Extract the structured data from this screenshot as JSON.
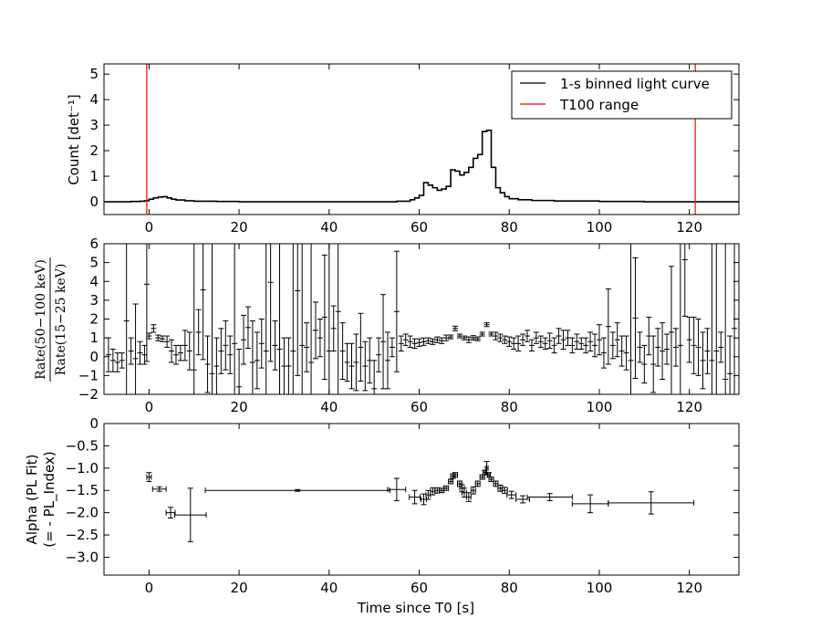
{
  "chart_data": [
    {
      "type": "line",
      "panel": "light-curve",
      "ylabel": "Count [det⁻¹]",
      "xlim": [
        -10,
        131
      ],
      "ylim": [
        -0.5,
        5.4
      ],
      "xticks": [
        0,
        20,
        40,
        60,
        80,
        100,
        120
      ],
      "yticks": [
        0,
        1,
        2,
        3,
        4,
        5
      ],
      "legend": {
        "placement": "top-right",
        "entries": [
          {
            "label": "1-s binned light curve",
            "color": "#000000"
          },
          {
            "label": "T100 range",
            "color": "#ff0000"
          }
        ]
      },
      "t100_lines": [
        -0.5,
        121.3
      ],
      "series": [
        {
          "name": "1-s binned light curve",
          "x": [
            -10,
            -8,
            -6,
            -4,
            -2,
            -1,
            0,
            1,
            2,
            3,
            4,
            5,
            6,
            8,
            10,
            15,
            20,
            30,
            40,
            50,
            55,
            58,
            59,
            60,
            61,
            62,
            63,
            64,
            65,
            66,
            67,
            68,
            69,
            70,
            71,
            72,
            73,
            74,
            75,
            76,
            77,
            78,
            79,
            80,
            82,
            85,
            90,
            100,
            110,
            120,
            131
          ],
          "y": [
            0,
            0,
            0,
            0.01,
            0.02,
            0.04,
            0.1,
            0.15,
            0.18,
            0.2,
            0.15,
            0.1,
            0.07,
            0.04,
            0.02,
            0.01,
            0,
            0,
            0,
            0,
            0.02,
            0.08,
            0.15,
            0.25,
            0.75,
            0.65,
            0.55,
            0.45,
            0.5,
            0.6,
            1.25,
            1.2,
            1.05,
            1.15,
            1.35,
            1.7,
            1.85,
            2.75,
            2.8,
            1.35,
            0.55,
            0.35,
            0.2,
            0.12,
            0.08,
            0.05,
            0.03,
            0.01,
            0,
            0,
            0
          ]
        }
      ]
    },
    {
      "type": "scatter",
      "panel": "hardness-ratio",
      "ylabel": "Rate(50−100 keV) / Rate(15−25 keV)",
      "xlim": [
        -10,
        131
      ],
      "ylim": [
        -2,
        6
      ],
      "xticks": [
        0,
        20,
        40,
        60,
        80,
        100,
        120
      ],
      "yticks": [
        -2,
        -1,
        0,
        1,
        2,
        3,
        4,
        5,
        6
      ],
      "points": [
        {
          "x": -9,
          "y": 0.1,
          "err": 0.9
        },
        {
          "x": -8,
          "y": -0.2,
          "err": 0.6
        },
        {
          "x": -7,
          "y": -0.3,
          "err": 0.5
        },
        {
          "x": -6,
          "y": -0.2,
          "err": 0.4
        },
        {
          "x": -5,
          "y": 1.9,
          "err": 8
        },
        {
          "x": -4,
          "y": 0.3,
          "err": 0.7
        },
        {
          "x": -3,
          "y": -0.1,
          "err": 2.9
        },
        {
          "x": -2,
          "y": 0.2,
          "err": 0.6
        },
        {
          "x": -1,
          "y": 0.1,
          "err": 0.5
        },
        {
          "x": -0.5,
          "y": 3.85,
          "err": 4.1
        },
        {
          "x": 0,
          "y": 1.1,
          "err": 0.15
        },
        {
          "x": 1,
          "y": 1.5,
          "err": 0.2
        },
        {
          "x": 2,
          "y": 1,
          "err": 0.15
        },
        {
          "x": 3,
          "y": 0.95,
          "err": 0.15
        },
        {
          "x": 4,
          "y": 0.8,
          "err": 0.3
        },
        {
          "x": 5,
          "y": 0.3,
          "err": 0.6
        },
        {
          "x": 6,
          "y": 0.1,
          "err": 0.5
        },
        {
          "x": 7,
          "y": 0.2,
          "err": 0.4
        },
        {
          "x": 8,
          "y": 0.6,
          "err": 0.8
        },
        {
          "x": 9,
          "y": 0.3,
          "err": 1
        },
        {
          "x": 10,
          "y": -0.7,
          "err": 8
        },
        {
          "x": 11,
          "y": 1.3,
          "err": 1.2
        },
        {
          "x": 12,
          "y": 3.55,
          "err": 3.7
        },
        {
          "x": 13,
          "y": -0.4,
          "err": 1.5
        },
        {
          "x": 14,
          "y": -0.9,
          "err": 8
        },
        {
          "x": 15,
          "y": -0.5,
          "err": 1.5
        },
        {
          "x": 16,
          "y": 0.3,
          "err": 1.2
        },
        {
          "x": 17,
          "y": 0.6,
          "err": 1.3
        },
        {
          "x": 18,
          "y": 0.1,
          "err": 1
        },
        {
          "x": 19,
          "y": 0.7,
          "err": 8
        },
        {
          "x": 20,
          "y": -1.6,
          "err": 2
        },
        {
          "x": 21,
          "y": 0.9,
          "err": 1.3
        },
        {
          "x": 22,
          "y": 1.55,
          "err": 1.1
        },
        {
          "x": 23,
          "y": -0.3,
          "err": 2.2
        },
        {
          "x": 24,
          "y": -0.2,
          "err": 1.5
        },
        {
          "x": 25,
          "y": 0.7,
          "err": 1.3
        },
        {
          "x": 26,
          "y": 0.3,
          "err": 8
        },
        {
          "x": 27,
          "y": 3.95,
          "err": 4.2
        },
        {
          "x": 28,
          "y": 0.6,
          "err": 1.3
        },
        {
          "x": 29,
          "y": 0.4,
          "err": 8
        },
        {
          "x": 30,
          "y": -0.5,
          "err": 1.5
        },
        {
          "x": 31,
          "y": -0.5,
          "err": 1.5
        },
        {
          "x": 32,
          "y": 0.3,
          "err": 8
        },
        {
          "x": 33,
          "y": 3.5,
          "err": 4.5
        },
        {
          "x": 34,
          "y": 0.6,
          "err": 8
        },
        {
          "x": 35,
          "y": 0.5,
          "err": 1.3
        },
        {
          "x": 36,
          "y": -0.3,
          "err": 8
        },
        {
          "x": 37,
          "y": 1.4,
          "err": 1.5
        },
        {
          "x": 38,
          "y": 1,
          "err": 1
        },
        {
          "x": 39,
          "y": 2.1,
          "err": 3.3
        },
        {
          "x": 40,
          "y": 0.3,
          "err": 8
        },
        {
          "x": 41,
          "y": 1.5,
          "err": 1.2
        },
        {
          "x": 42,
          "y": 2.4,
          "err": 8
        },
        {
          "x": 43,
          "y": 0.3,
          "err": 1.5
        },
        {
          "x": 44,
          "y": -0.3,
          "err": 1
        },
        {
          "x": 45,
          "y": -0.5,
          "err": 1.2
        },
        {
          "x": 46,
          "y": -0.3,
          "err": 1.5
        },
        {
          "x": 47,
          "y": 0.5,
          "err": 1.8
        },
        {
          "x": 48,
          "y": -0.5,
          "err": 1.3
        },
        {
          "x": 49,
          "y": -0.2,
          "err": 1.2
        },
        {
          "x": 50,
          "y": -1.7,
          "err": 1.5
        },
        {
          "x": 51,
          "y": 0.1,
          "err": 0.9
        },
        {
          "x": 52,
          "y": 0.8,
          "err": 2.5
        },
        {
          "x": 53,
          "y": -0.2,
          "err": 1.5
        },
        {
          "x": 54,
          "y": 0.5,
          "err": 0.5
        },
        {
          "x": 55,
          "y": 2.4,
          "err": 3.2
        },
        {
          "x": 56,
          "y": 0.7,
          "err": 0.4
        },
        {
          "x": 57,
          "y": 0.9,
          "err": 0.3
        },
        {
          "x": 58,
          "y": 0.8,
          "err": 0.3
        },
        {
          "x": 59,
          "y": 0.7,
          "err": 0.25
        },
        {
          "x": 60,
          "y": 0.75,
          "err": 0.2
        },
        {
          "x": 61,
          "y": 0.8,
          "err": 0.2
        },
        {
          "x": 62,
          "y": 0.85,
          "err": 0.15
        },
        {
          "x": 63,
          "y": 0.8,
          "err": 0.15
        },
        {
          "x": 64,
          "y": 0.9,
          "err": 0.15
        },
        {
          "x": 65,
          "y": 0.85,
          "err": 0.15
        },
        {
          "x": 66,
          "y": 1,
          "err": 0.15
        },
        {
          "x": 67,
          "y": 1.05,
          "err": 0.1
        },
        {
          "x": 68,
          "y": 1.5,
          "err": 0.12
        },
        {
          "x": 69,
          "y": 1.1,
          "err": 0.1
        },
        {
          "x": 70,
          "y": 1,
          "err": 0.1
        },
        {
          "x": 71,
          "y": 0.9,
          "err": 0.15
        },
        {
          "x": 72,
          "y": 1,
          "err": 0.12
        },
        {
          "x": 73,
          "y": 0.95,
          "err": 0.1
        },
        {
          "x": 74,
          "y": 1.2,
          "err": 0.1
        },
        {
          "x": 75,
          "y": 1.7,
          "err": 0.1
        },
        {
          "x": 76,
          "y": 1.2,
          "err": 0.1
        },
        {
          "x": 77,
          "y": 1.1,
          "err": 0.2
        },
        {
          "x": 78,
          "y": 1,
          "err": 0.2
        },
        {
          "x": 79,
          "y": 0.9,
          "err": 0.2
        },
        {
          "x": 80,
          "y": 0.8,
          "err": 0.25
        },
        {
          "x": 81,
          "y": 0.7,
          "err": 0.3
        },
        {
          "x": 82,
          "y": 0.7,
          "err": 0.4
        },
        {
          "x": 83,
          "y": 0.9,
          "err": 0.3
        },
        {
          "x": 84,
          "y": 1.1,
          "err": 0.3
        },
        {
          "x": 85,
          "y": 0.6,
          "err": 0.3
        },
        {
          "x": 86,
          "y": 1,
          "err": 0.3
        },
        {
          "x": 87,
          "y": 0.8,
          "err": 0.3
        },
        {
          "x": 88,
          "y": 0.7,
          "err": 0.3
        },
        {
          "x": 89,
          "y": 0.85,
          "err": 0.4
        },
        {
          "x": 90,
          "y": 0.6,
          "err": 0.4
        },
        {
          "x": 91,
          "y": 1.1,
          "err": 0.4
        },
        {
          "x": 92,
          "y": 0.9,
          "err": 0.5
        },
        {
          "x": 93,
          "y": 1,
          "err": 0.4
        },
        {
          "x": 94,
          "y": 0.6,
          "err": 0.4
        },
        {
          "x": 95,
          "y": 0.8,
          "err": 0.4
        },
        {
          "x": 96,
          "y": 0.7,
          "err": 0.3
        },
        {
          "x": 97,
          "y": 0.6,
          "err": 0.4
        },
        {
          "x": 98,
          "y": 0.8,
          "err": 0.5
        },
        {
          "x": 99,
          "y": 0.6,
          "err": 0.6
        },
        {
          "x": 100,
          "y": 0.9,
          "err": 0.8
        },
        {
          "x": 101,
          "y": 0.2,
          "err": 0.8
        },
        {
          "x": 102,
          "y": 1.6,
          "err": 2
        },
        {
          "x": 103,
          "y": 0.6,
          "err": 0.7
        },
        {
          "x": 104,
          "y": 0.9,
          "err": 0.9
        },
        {
          "x": 105,
          "y": 0.3,
          "err": 0.8
        },
        {
          "x": 106,
          "y": 0.2,
          "err": 0.9
        },
        {
          "x": 107,
          "y": -0.2,
          "err": 8
        },
        {
          "x": 108,
          "y": 2.05,
          "err": 3.2
        },
        {
          "x": 109,
          "y": 0.5,
          "err": 0.8
        },
        {
          "x": 110,
          "y": -0.4,
          "err": 1
        },
        {
          "x": 111,
          "y": 1.1,
          "err": 1
        },
        {
          "x": 112,
          "y": -0.4,
          "err": 1.5
        },
        {
          "x": 113,
          "y": 0.5,
          "err": 1
        },
        {
          "x": 114,
          "y": 0.3,
          "err": 1.5
        },
        {
          "x": 115,
          "y": 0.4,
          "err": 0.8
        },
        {
          "x": 116,
          "y": 1.3,
          "err": 3.5
        },
        {
          "x": 117,
          "y": 0.5,
          "err": 1
        },
        {
          "x": 118,
          "y": 0.6,
          "err": 8
        },
        {
          "x": 119,
          "y": 5.15,
          "err": 3
        },
        {
          "x": 120,
          "y": 0.9,
          "err": 1.2
        },
        {
          "x": 121,
          "y": 0.6,
          "err": 1.5
        },
        {
          "x": 122,
          "y": 0.5,
          "err": 1.5
        },
        {
          "x": 123,
          "y": -0.2,
          "err": 1.5
        },
        {
          "x": 124,
          "y": 0.3,
          "err": 1.2
        },
        {
          "x": 125,
          "y": -0.2,
          "err": 8
        },
        {
          "x": 126,
          "y": 0.3,
          "err": 8
        },
        {
          "x": 127,
          "y": 0.5,
          "err": 0.8
        },
        {
          "x": 128,
          "y": -1.2,
          "err": 8
        },
        {
          "x": 129,
          "y": -0.9,
          "err": 2
        },
        {
          "x": 130,
          "y": 1.5,
          "err": 8
        }
      ]
    },
    {
      "type": "scatter",
      "panel": "alpha",
      "ylabel": [
        "Alpha (PL Fit)",
        "(= - PL_Index)"
      ],
      "xlabel": "Time since T0 [s]",
      "xlim": [
        -10,
        131
      ],
      "ylim": [
        -3.4,
        0
      ],
      "xticks": [
        0,
        20,
        40,
        60,
        80,
        100,
        120
      ],
      "yticks": [
        0.0,
        -0.5,
        -1.0,
        -1.5,
        -2.0,
        -2.5,
        -3.0
      ],
      "points": [
        {
          "x": 0,
          "y": -1.2,
          "xerr": 0.5,
          "yerr": 0.1
        },
        {
          "x": 2.3,
          "y": -1.47,
          "xerr": 1.5,
          "yerr": 0.05
        },
        {
          "x": 4.8,
          "y": -2.0,
          "xerr": 1,
          "yerr": 0.12
        },
        {
          "x": 9.2,
          "y": -2.05,
          "xerr": 3.5,
          "yerr": 0.6
        },
        {
          "x": 33,
          "y": -1.5,
          "xerr": 20.5,
          "yerr": 0.02
        },
        {
          "x": 55,
          "y": -1.48,
          "xerr": 2,
          "yerr": 0.25
        },
        {
          "x": 59,
          "y": -1.65,
          "xerr": 1.2,
          "yerr": 0.15
        },
        {
          "x": 61,
          "y": -1.7,
          "xerr": 0.6,
          "yerr": 0.12
        },
        {
          "x": 62,
          "y": -1.6,
          "xerr": 0.5,
          "yerr": 0.1
        },
        {
          "x": 63,
          "y": -1.52,
          "xerr": 0.5,
          "yerr": 0.08
        },
        {
          "x": 64,
          "y": -1.5,
          "xerr": 0.5,
          "yerr": 0.06
        },
        {
          "x": 65,
          "y": -1.5,
          "xerr": 0.5,
          "yerr": 0.05
        },
        {
          "x": 66,
          "y": -1.45,
          "xerr": 0.5,
          "yerr": 0.05
        },
        {
          "x": 67,
          "y": -1.3,
          "xerr": 0.5,
          "yerr": 0.05
        },
        {
          "x": 67.5,
          "y": -1.18,
          "xerr": 0.5,
          "yerr": 0.05
        },
        {
          "x": 68,
          "y": -1.15,
          "xerr": 0.5,
          "yerr": 0.05
        },
        {
          "x": 69,
          "y": -1.35,
          "xerr": 0.5,
          "yerr": 0.06
        },
        {
          "x": 69.5,
          "y": -1.45,
          "xerr": 0.5,
          "yerr": 0.08
        },
        {
          "x": 70,
          "y": -1.55,
          "xerr": 0.5,
          "yerr": 0.1
        },
        {
          "x": 71,
          "y": -1.65,
          "xerr": 0.5,
          "yerr": 0.1
        },
        {
          "x": 72,
          "y": -1.5,
          "xerr": 0.5,
          "yerr": 0.08
        },
        {
          "x": 73,
          "y": -1.35,
          "xerr": 0.5,
          "yerr": 0.06
        },
        {
          "x": 74,
          "y": -1.2,
          "xerr": 0.5,
          "yerr": 0.05
        },
        {
          "x": 74.5,
          "y": -1.1,
          "xerr": 0.3,
          "yerr": 0.05
        },
        {
          "x": 75,
          "y": -1.0,
          "xerr": 0.3,
          "yerr": 0.15
        },
        {
          "x": 75.5,
          "y": -1.15,
          "xerr": 0.3,
          "yerr": 0.05
        },
        {
          "x": 76,
          "y": -1.25,
          "xerr": 0.5,
          "yerr": 0.05
        },
        {
          "x": 77,
          "y": -1.35,
          "xerr": 0.5,
          "yerr": 0.06
        },
        {
          "x": 78,
          "y": -1.45,
          "xerr": 0.5,
          "yerr": 0.07
        },
        {
          "x": 79,
          "y": -1.5,
          "xerr": 0.6,
          "yerr": 0.07
        },
        {
          "x": 80.5,
          "y": -1.6,
          "xerr": 1,
          "yerr": 0.08
        },
        {
          "x": 83,
          "y": -1.7,
          "xerr": 1.5,
          "yerr": 0.08
        },
        {
          "x": 89,
          "y": -1.65,
          "xerr": 5,
          "yerr": 0.08
        },
        {
          "x": 98,
          "y": -1.8,
          "xerr": 4,
          "yerr": 0.2
        },
        {
          "x": 111.5,
          "y": -1.78,
          "xerr": 9.5,
          "yerr": 0.25
        }
      ]
    }
  ]
}
